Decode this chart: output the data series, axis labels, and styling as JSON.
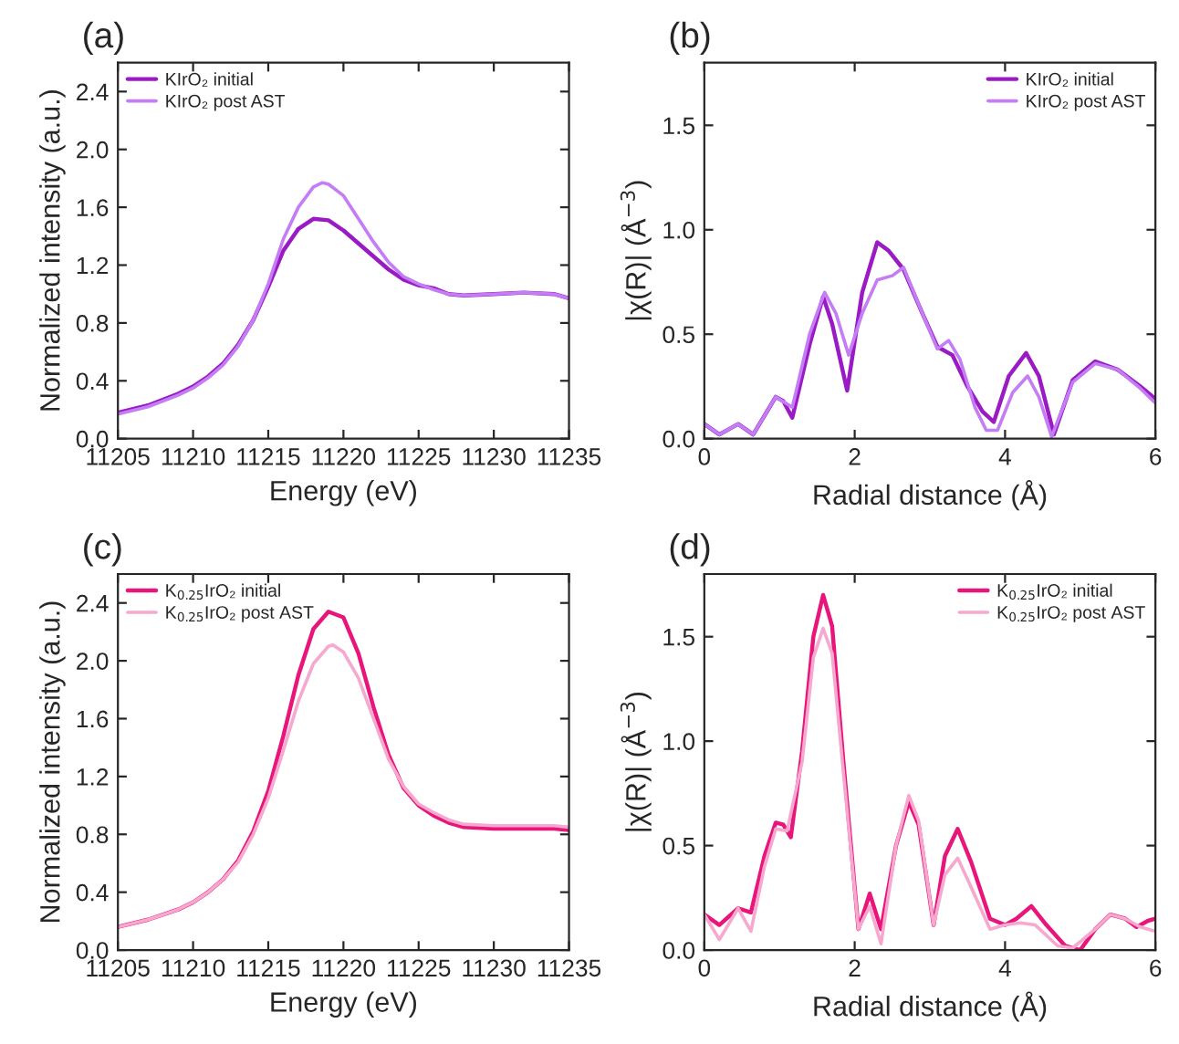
{
  "chart_data": [
    {
      "type": "line",
      "title": "(a)",
      "xlabel": "Energy (eV)",
      "ylabel": "Normalized intensity (a.u.)",
      "xlim": [
        11205,
        11235
      ],
      "xticks": [
        11205,
        11210,
        11215,
        11220,
        11225,
        11230,
        11235
      ],
      "ylim": [
        0,
        2.6
      ],
      "yticks": [
        {
          "value": 0,
          "label": "0.0"
        },
        0.4,
        0.8,
        1.2,
        1.6,
        {
          "value": 2,
          "label": "2.0"
        },
        2.4
      ],
      "grid": false,
      "legend": "top left",
      "series": [
        {
          "name": "KIrO₂ initial",
          "color": "#9a1bc4",
          "x": [
            11205,
            11207,
            11209,
            11210,
            11211,
            11212,
            11213,
            11214,
            11215,
            11216,
            11217,
            11218,
            11219,
            11220,
            11221,
            11222,
            11223,
            11224,
            11225,
            11226,
            11227,
            11228,
            11230,
            11232,
            11234,
            11235
          ],
          "values": [
            0.18,
            0.23,
            0.31,
            0.36,
            0.43,
            0.52,
            0.65,
            0.82,
            1.05,
            1.3,
            1.45,
            1.52,
            1.51,
            1.44,
            1.35,
            1.26,
            1.17,
            1.1,
            1.06,
            1.04,
            1.0,
            0.99,
            1.0,
            1.01,
            1.0,
            0.97
          ]
        },
        {
          "name": "KIrO₂ post AST",
          "color": "#c47df5",
          "x": [
            11205,
            11207,
            11209,
            11210,
            11211,
            11212,
            11213,
            11214,
            11215,
            11216,
            11217,
            11218,
            11218.6,
            11219,
            11220,
            11221,
            11222,
            11223,
            11224,
            11225,
            11226,
            11227,
            11228,
            11230,
            11232,
            11234,
            11235
          ],
          "values": [
            0.17,
            0.22,
            0.3,
            0.35,
            0.42,
            0.51,
            0.64,
            0.82,
            1.07,
            1.38,
            1.6,
            1.74,
            1.77,
            1.76,
            1.68,
            1.52,
            1.36,
            1.22,
            1.12,
            1.07,
            1.03,
            1.0,
            0.99,
            1.0,
            1.01,
            1.0,
            0.97
          ]
        }
      ]
    },
    {
      "type": "line",
      "title": "(b)",
      "xlabel": "Radial distance (Å)",
      "ylabel": "|χ(R)| (Å$^{−3}$)",
      "xlim": [
        0,
        6
      ],
      "xticks": [
        0,
        2,
        4,
        6
      ],
      "ylim": [
        0,
        1.8
      ],
      "yticks": [
        {
          "value": 0,
          "label": "0.0"
        },
        0.5,
        {
          "value": 1,
          "label": "1.0"
        },
        1.5
      ],
      "grid": false,
      "legend": "top right",
      "series": [
        {
          "name": "KIrO₂ initial",
          "color": "#9a1bc4",
          "x": [
            0,
            0.2,
            0.45,
            0.65,
            0.95,
            1.05,
            1.17,
            1.4,
            1.58,
            1.7,
            1.9,
            2.1,
            2.3,
            2.45,
            2.65,
            2.9,
            3.1,
            3.3,
            3.5,
            3.7,
            3.85,
            4.05,
            4.28,
            4.45,
            4.65,
            4.9,
            5.2,
            5.5,
            5.8,
            6.0
          ],
          "values": [
            0.07,
            0.02,
            0.07,
            0.02,
            0.2,
            0.18,
            0.1,
            0.45,
            0.68,
            0.55,
            0.23,
            0.7,
            0.94,
            0.9,
            0.81,
            0.6,
            0.44,
            0.4,
            0.25,
            0.13,
            0.08,
            0.3,
            0.41,
            0.3,
            0.02,
            0.28,
            0.37,
            0.33,
            0.25,
            0.19
          ]
        },
        {
          "name": "KIrO₂ post AST",
          "color": "#c47df5",
          "x": [
            0,
            0.2,
            0.45,
            0.65,
            0.95,
            1.17,
            1.4,
            1.6,
            1.75,
            1.92,
            2.1,
            2.3,
            2.5,
            2.65,
            2.9,
            3.1,
            3.25,
            3.4,
            3.6,
            3.75,
            3.9,
            4.1,
            4.3,
            4.45,
            4.62,
            4.9,
            5.2,
            5.5,
            5.8,
            6.0
          ],
          "values": [
            0.07,
            0.02,
            0.07,
            0.02,
            0.2,
            0.15,
            0.5,
            0.7,
            0.6,
            0.4,
            0.6,
            0.76,
            0.78,
            0.82,
            0.6,
            0.43,
            0.47,
            0.38,
            0.15,
            0.04,
            0.04,
            0.22,
            0.3,
            0.2,
            0.01,
            0.27,
            0.36,
            0.33,
            0.24,
            0.17
          ]
        }
      ]
    },
    {
      "type": "line",
      "title": "(c)",
      "xlabel": "Energy (eV)",
      "ylabel": "Normalized intensity (a.u.)",
      "xlim": [
        11205,
        11235
      ],
      "xticks": [
        11205,
        11210,
        11215,
        11220,
        11225,
        11230,
        11235
      ],
      "ylim": [
        0,
        2.6
      ],
      "yticks": [
        {
          "value": 0,
          "label": "0.0"
        },
        0.4,
        0.8,
        1.2,
        1.6,
        {
          "value": 2,
          "label": "2.0"
        },
        2.4
      ],
      "grid": false,
      "legend": "top left",
      "series": [
        {
          "name": "K$_{0.25}$IrO₂ initial",
          "color": "#e8157a",
          "x": [
            11205,
            11207,
            11209,
            11210,
            11211,
            11212,
            11213,
            11214,
            11215,
            11216,
            11217,
            11218,
            11219,
            11220,
            11221,
            11222,
            11223,
            11224,
            11225,
            11226,
            11227,
            11228,
            11230,
            11232,
            11234,
            11235
          ],
          "values": [
            0.16,
            0.21,
            0.28,
            0.33,
            0.4,
            0.49,
            0.62,
            0.82,
            1.1,
            1.48,
            1.9,
            2.22,
            2.34,
            2.3,
            2.05,
            1.68,
            1.35,
            1.12,
            1.0,
            0.93,
            0.88,
            0.85,
            0.84,
            0.84,
            0.84,
            0.83
          ]
        },
        {
          "name": "K$_{0.25}$IrO₂ post AST",
          "color": "#f7a8cf",
          "x": [
            11205,
            11207,
            11209,
            11210,
            11211,
            11212,
            11213,
            11214,
            11215,
            11216,
            11217,
            11218,
            11219,
            11219.3,
            11220,
            11221,
            11222,
            11223,
            11224,
            11225,
            11226,
            11227,
            11228,
            11230,
            11232,
            11234,
            11235
          ],
          "values": [
            0.16,
            0.21,
            0.28,
            0.33,
            0.4,
            0.49,
            0.61,
            0.8,
            1.05,
            1.38,
            1.72,
            1.98,
            2.1,
            2.11,
            2.06,
            1.88,
            1.6,
            1.32,
            1.13,
            1.01,
            0.95,
            0.9,
            0.87,
            0.86,
            0.86,
            0.86,
            0.85
          ]
        }
      ]
    },
    {
      "type": "line",
      "title": "(d)",
      "xlabel": "Radial distance (Å)",
      "ylabel": "|χ(R)| (Å$^{−3}$)",
      "xlim": [
        0,
        6
      ],
      "xticks": [
        0,
        2,
        4,
        6
      ],
      "ylim": [
        0,
        1.8
      ],
      "yticks": [
        {
          "value": 0,
          "label": "0.0"
        },
        0.5,
        {
          "value": 1,
          "label": "1.0"
        },
        1.5
      ],
      "grid": false,
      "legend": "top right",
      "series": [
        {
          "name": "K$_{0.25}$IrO₂ initial",
          "color": "#e8157a",
          "x": [
            0,
            0.2,
            0.45,
            0.62,
            0.8,
            0.95,
            1.05,
            1.15,
            1.3,
            1.45,
            1.58,
            1.7,
            1.85,
            2.05,
            2.2,
            2.35,
            2.55,
            2.72,
            2.85,
            3.05,
            3.2,
            3.37,
            3.55,
            3.8,
            4.0,
            4.15,
            4.35,
            4.55,
            4.8,
            5.0,
            5.2,
            5.4,
            5.6,
            5.75,
            5.9,
            6.0
          ],
          "values": [
            0.17,
            0.12,
            0.2,
            0.18,
            0.45,
            0.61,
            0.6,
            0.54,
            0.95,
            1.5,
            1.7,
            1.55,
            0.9,
            0.1,
            0.27,
            0.1,
            0.5,
            0.71,
            0.6,
            0.12,
            0.45,
            0.58,
            0.42,
            0.15,
            0.12,
            0.15,
            0.21,
            0.12,
            0.02,
            0.0,
            0.1,
            0.17,
            0.15,
            0.11,
            0.14,
            0.15
          ]
        },
        {
          "name": "K$_{0.25}$IrO₂ post AST",
          "color": "#f7a8cf",
          "x": [
            0,
            0.2,
            0.45,
            0.62,
            0.8,
            0.95,
            1.1,
            1.3,
            1.45,
            1.58,
            1.7,
            1.85,
            2.05,
            2.2,
            2.35,
            2.55,
            2.72,
            2.85,
            3.05,
            3.2,
            3.37,
            3.55,
            3.8,
            4.0,
            4.2,
            4.4,
            4.7,
            4.9,
            5.2,
            5.4,
            5.6,
            5.8,
            6.0
          ],
          "values": [
            0.17,
            0.05,
            0.2,
            0.09,
            0.4,
            0.58,
            0.57,
            0.9,
            1.4,
            1.54,
            1.42,
            0.85,
            0.1,
            0.21,
            0.03,
            0.5,
            0.74,
            0.62,
            0.12,
            0.36,
            0.44,
            0.3,
            0.1,
            0.12,
            0.13,
            0.12,
            0.02,
            0.01,
            0.1,
            0.17,
            0.15,
            0.11,
            0.09
          ]
        }
      ]
    }
  ]
}
